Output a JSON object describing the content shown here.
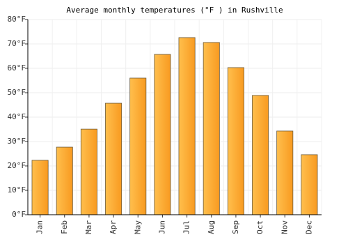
{
  "chart_data": {
    "type": "bar",
    "title": "Average monthly temperatures (°F ) in Rushville",
    "categories": [
      "Jan",
      "Feb",
      "Mar",
      "Apr",
      "May",
      "Jun",
      "Jul",
      "Aug",
      "Sep",
      "Oct",
      "Nov",
      "Dec"
    ],
    "values": [
      22.3,
      27.7,
      35.1,
      45.7,
      56,
      65.7,
      72.6,
      70.6,
      60.3,
      48.9,
      34.3,
      24.6
    ],
    "color": "#fba733",
    "ylim": [
      0,
      80
    ],
    "yticks": [
      {
        "value": 0,
        "label": "0°F"
      },
      {
        "value": 10,
        "label": "10°F"
      },
      {
        "value": 20,
        "label": "20°F"
      },
      {
        "value": 30,
        "label": "30°F"
      },
      {
        "value": 40,
        "label": "40°F"
      },
      {
        "value": 50,
        "label": "50°F"
      },
      {
        "value": 60,
        "label": "60°F"
      },
      {
        "value": 70,
        "label": "70°F"
      },
      {
        "value": 80,
        "label": "80°F"
      }
    ],
    "grid": true
  }
}
